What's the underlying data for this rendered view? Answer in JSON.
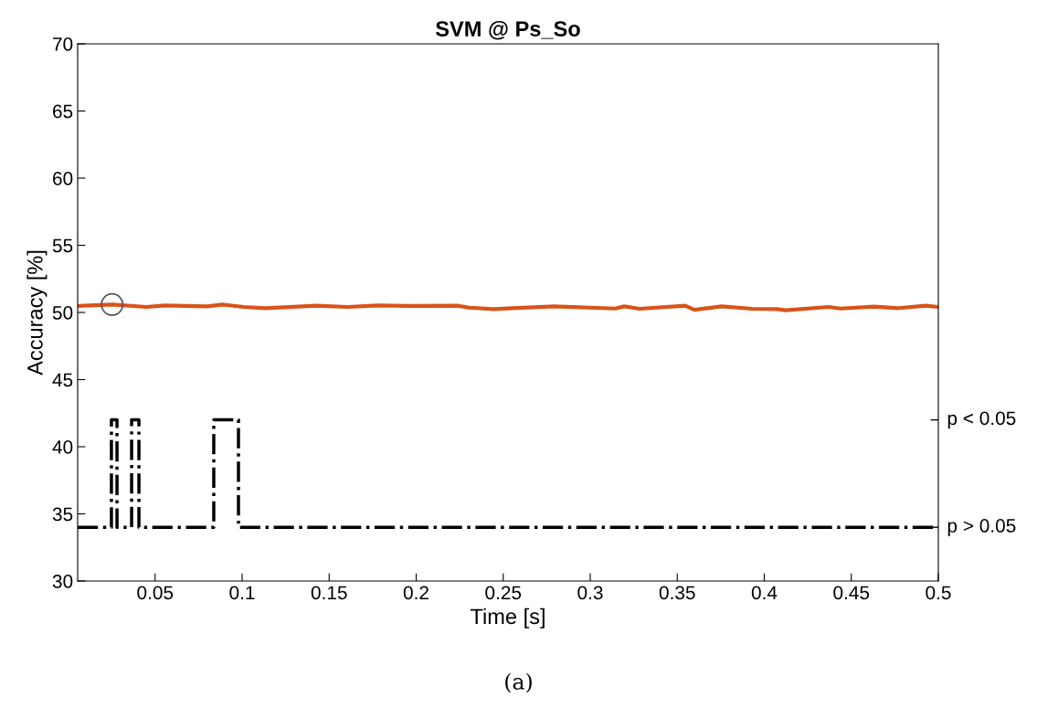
{
  "chart_data": {
    "type": "line",
    "title": "SVM @ Ps_So",
    "xlabel": "Time [s]",
    "ylabel": "Accuracy [%]",
    "annotations": [
      "(a)",
      "p < 0.05",
      "p > 0.05"
    ],
    "xlim": [
      0.0055,
      0.5
    ],
    "xticks": [
      0.05,
      0.1,
      0.15,
      0.2,
      0.25,
      0.3,
      0.35,
      0.4,
      0.45,
      0.5
    ],
    "ylim": [
      30,
      70
    ],
    "yticks": [
      30,
      35,
      40,
      45,
      50,
      55,
      60,
      65,
      70
    ],
    "grid": false,
    "legend": false,
    "series": [
      {
        "color": "#d95319",
        "line_style": "solid",
        "x": [
          0.0055,
          0.0256,
          0.0449,
          0.0554,
          0.0799,
          0.0886,
          0.1009,
          0.1131,
          0.1429,
          0.1604,
          0.1778,
          0.1954,
          0.2234,
          0.2304,
          0.2444,
          0.2549,
          0.2794,
          0.3143,
          0.3196,
          0.3283,
          0.3546,
          0.3598,
          0.3756,
          0.3931,
          0.4071,
          0.4123,
          0.4369,
          0.4438,
          0.4631,
          0.4771,
          0.4928,
          0.5
        ],
        "values": [
          50.48,
          50.59,
          50.41,
          50.52,
          50.45,
          50.59,
          50.41,
          50.32,
          50.5,
          50.41,
          50.52,
          50.48,
          50.5,
          50.36,
          50.25,
          50.32,
          50.45,
          50.29,
          50.45,
          50.27,
          50.5,
          50.2,
          50.45,
          50.27,
          50.25,
          50.16,
          50.41,
          50.29,
          50.43,
          50.32,
          50.5,
          50.41
        ]
      },
      {
        "type": "scatter",
        "color": "#555555",
        "marker": "circle",
        "x": [
          0.0253
        ],
        "values": [
          50.59
        ]
      },
      {
        "type": "step",
        "color": "#000000",
        "line_style": "dashdot",
        "x": [
          0.0055,
          0.0249,
          0.0281,
          0.0365,
          0.0407,
          0.0837,
          0.0979,
          0.5
        ],
        "values": [
          34,
          42,
          34,
          42,
          34,
          42,
          34,
          34
        ]
      }
    ]
  }
}
